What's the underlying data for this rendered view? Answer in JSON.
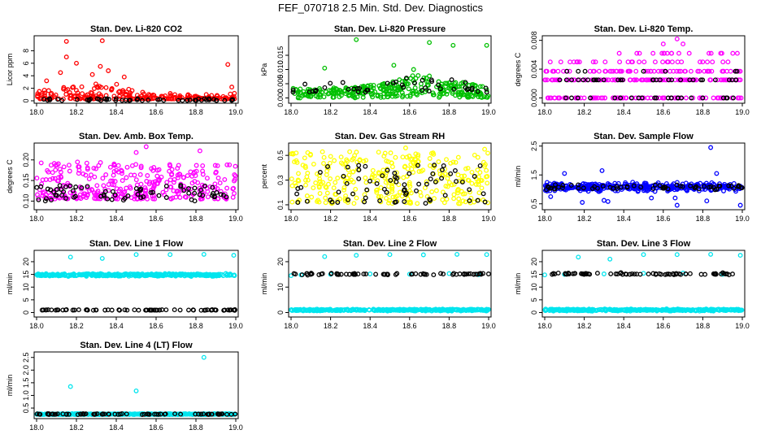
{
  "page_title": "FEF_070718  2.5 Min. Std. Dev. Diagnostics",
  "chart_data": [
    {
      "type": "scatter",
      "title": "Stan. Dev. Li-820 CO2",
      "ylabel": "Licor ppm",
      "xlim": [
        18.0,
        19.0
      ],
      "xticks": [
        "18.0",
        "18.2",
        "18.4",
        "18.6",
        "18.8",
        "19.0"
      ],
      "ylim": [
        0,
        10
      ],
      "yticks": [
        {
          "value": 0,
          "label": "0"
        },
        {
          "value": 2,
          "label": "2"
        },
        {
          "value": 4,
          "label": "4"
        },
        {
          "value": 6,
          "label": "6"
        },
        {
          "value": 8,
          "label": "8"
        }
      ],
      "series": [
        {
          "color": "#ff0000",
          "pattern": {
            "base": 0.3,
            "spread": 2.4,
            "skew": 2.5,
            "count": 240,
            "env": [
              [
                18.0,
                0.5
              ],
              [
                18.1,
                0.8
              ],
              [
                18.3,
                1.0
              ],
              [
                18.45,
                1.0
              ],
              [
                18.55,
                0.4
              ],
              [
                18.9,
                0.3
              ],
              [
                19.0,
                0.4
              ]
            ]
          },
          "points": [
            [
              18.15,
              9.5
            ],
            [
              18.15,
              7.0
            ],
            [
              18.33,
              9.6
            ],
            [
              18.96,
              5.8
            ],
            [
              18.2,
              6.0
            ],
            [
              18.32,
              5.5
            ],
            [
              18.36,
              4.8
            ],
            [
              18.28,
              4.2
            ],
            [
              18.44,
              3.8
            ],
            [
              18.98,
              2.2
            ],
            [
              18.05,
              3.2
            ],
            [
              18.12,
              4.5
            ]
          ]
        },
        {
          "color": "#000000",
          "pattern": {
            "base": 0.05,
            "spread": 0.3,
            "skew": 2.0,
            "count": 50
          },
          "points": []
        }
      ]
    },
    {
      "type": "scatter",
      "title": "Stan. Dev. Li-820 Pressure",
      "ylabel": "kPa",
      "xlim": [
        18.0,
        19.0
      ],
      "xticks": [
        "18.0",
        "18.2",
        "18.4",
        "18.6",
        "18.8",
        "19.0"
      ],
      "ylim": [
        -0.001,
        0.021
      ],
      "yticks": [
        {
          "value": 0.0,
          "label": "0.000"
        },
        {
          "value": 0.005,
          "label": "0.005"
        },
        {
          "value": 0.01,
          "label": "0.010"
        },
        {
          "value": 0.015,
          "label": "0.015"
        }
      ],
      "series": [
        {
          "color": "#00c000",
          "pattern": {
            "base": 0.0,
            "spread": 0.0045,
            "skew": 1.0,
            "count": 320,
            "env": [
              [
                18.0,
                0.8
              ],
              [
                18.3,
                0.8
              ],
              [
                18.5,
                1.2
              ],
              [
                18.65,
                1.9
              ],
              [
                18.8,
                1.4
              ],
              [
                19.0,
                0.9
              ]
            ]
          },
          "points": [
            [
              18.33,
              0.0205
            ],
            [
              18.17,
              0.0105
            ],
            [
              18.7,
              0.0195
            ],
            [
              18.82,
              0.0185
            ],
            [
              18.99,
              0.0185
            ],
            [
              18.52,
              0.0115
            ],
            [
              18.62,
              0.01
            ]
          ]
        },
        {
          "color": "#000000",
          "pattern": {
            "base": 0.002,
            "spread": 0.003,
            "skew": 1.2,
            "count": 45,
            "env": [
              [
                18.0,
                1.0
              ],
              [
                18.5,
                1.5
              ],
              [
                18.65,
                2.0
              ],
              [
                19.0,
                1.0
              ]
            ]
          },
          "points": []
        }
      ]
    },
    {
      "type": "scatter",
      "title": "Stan. Dev. Li-820 Temp.",
      "ylabel": "degrees C",
      "xlim": [
        18.0,
        19.0
      ],
      "xticks": [
        "18.0",
        "18.2",
        "18.4",
        "18.6",
        "18.8",
        "19.0"
      ],
      "ylim": [
        -0.0004,
        0.0083
      ],
      "yticks": [
        {
          "value": 0.0,
          "label": "0.000"
        },
        {
          "value": 0.004,
          "label": "0.004"
        },
        {
          "value": 0.008,
          "label": "0.008"
        }
      ],
      "series": [
        {
          "color": "#ff00ff",
          "pattern": {
            "levels": [
              0.0,
              0.0025,
              0.0037,
              0.005,
              0.0062
            ],
            "weights": [
              0.3,
              0.42,
              0.16,
              0.08,
              0.04
            ],
            "count": 320
          },
          "points": [
            [
              18.67,
              0.0082
            ],
            [
              18.7,
              0.0075
            ],
            [
              18.62,
              0.0062
            ],
            [
              18.6,
              0.0075
            ]
          ]
        },
        {
          "color": "#000000",
          "pattern": {
            "levels": [
              0.0,
              0.0025,
              0.0037
            ],
            "weights": [
              0.5,
              0.42,
              0.08
            ],
            "count": 60
          },
          "points": []
        }
      ]
    },
    {
      "type": "scatter",
      "title": "Stan. Dev. Amb. Box Temp.",
      "ylabel": "degrees C",
      "xlim": [
        18.0,
        19.0
      ],
      "xticks": [
        "18.0",
        "18.2",
        "18.4",
        "18.6",
        "18.8",
        "19.0"
      ],
      "ylim": [
        0.085,
        0.235
      ],
      "yticks": [
        {
          "value": 0.1,
          "label": "0.10"
        },
        {
          "value": 0.15,
          "label": "0.15"
        },
        {
          "value": 0.2,
          "label": "0.20"
        }
      ],
      "series": [
        {
          "color": "#ff00ff",
          "pattern": {
            "base": 0.105,
            "spread": 0.09,
            "skew": 1.6,
            "count": 330
          },
          "points": [
            [
              18.55,
              0.232
            ],
            [
              18.82,
              0.222
            ],
            [
              18.5,
              0.218
            ]
          ]
        },
        {
          "color": "#000000",
          "pattern": {
            "base": 0.1,
            "spread": 0.04,
            "skew": 1.3,
            "count": 70
          },
          "points": []
        }
      ]
    },
    {
      "type": "scatter",
      "title": "Stan. Dev. Gas Stream RH",
      "ylabel": "percent",
      "xlim": [
        18.0,
        19.0
      ],
      "xticks": [
        "18.0",
        "18.2",
        "18.4",
        "18.6",
        "18.8",
        "19.0"
      ],
      "ylim": [
        0.08,
        0.58
      ],
      "yticks": [
        {
          "value": 0.1,
          "label": "0.1"
        },
        {
          "value": 0.3,
          "label": "0.3"
        },
        {
          "value": 0.5,
          "label": "0.5"
        }
      ],
      "series": [
        {
          "color": "#ffff00",
          "pattern": {
            "base": 0.11,
            "spread": 0.42,
            "skew": 1.4,
            "count": 320
          },
          "points": [
            [
              18.58,
              0.56
            ],
            [
              18.98,
              0.55
            ]
          ]
        },
        {
          "color": "#000000",
          "pattern": {
            "base": 0.11,
            "spread": 0.33,
            "skew": 1.3,
            "count": 70
          },
          "points": []
        }
      ]
    },
    {
      "type": "scatter",
      "title": "Stan. Dev. Sample Flow",
      "ylabel": "ml/min",
      "xlim": [
        18.0,
        19.0
      ],
      "xticks": [
        "18.0",
        "18.2",
        "18.4",
        "18.6",
        "18.8",
        "19.0"
      ],
      "ylim": [
        0.38,
        2.52
      ],
      "yticks": [
        {
          "value": 0.5,
          "label": "0.5"
        },
        {
          "value": 1.5,
          "label": "1.5"
        },
        {
          "value": 2.5,
          "label": "2.5"
        }
      ],
      "series": [
        {
          "color": "#0000ff",
          "pattern": {
            "center": 1.08,
            "spread": 0.14,
            "count": 360
          },
          "points": [
            [
              18.84,
              2.45
            ],
            [
              18.03,
              0.75
            ],
            [
              18.1,
              1.55
            ],
            [
              18.29,
              1.65
            ],
            [
              18.3,
              0.62
            ],
            [
              18.32,
              0.58
            ],
            [
              18.54,
              0.7
            ],
            [
              18.66,
              0.7
            ],
            [
              18.67,
              0.45
            ],
            [
              18.82,
              0.6
            ],
            [
              18.99,
              0.45
            ],
            [
              18.87,
              1.55
            ],
            [
              18.19,
              0.55
            ]
          ]
        },
        {
          "color": "#000000",
          "pattern": {
            "center": 1.08,
            "spread": 0.08,
            "count": 60
          },
          "points": []
        }
      ]
    },
    {
      "type": "scatter",
      "title": "Stan. Dev. Line 1 Flow",
      "ylabel": "ml/min",
      "xlim": [
        18.0,
        19.0
      ],
      "xticks": [
        "18.0",
        "18.2",
        "18.4",
        "18.6",
        "18.8",
        "19.0"
      ],
      "ylim": [
        -0.8,
        23.5
      ],
      "yticks": [
        {
          "value": 0,
          "label": "0"
        },
        {
          "value": 5,
          "label": "5"
        },
        {
          "value": 10,
          "label": "10"
        },
        {
          "value": 15,
          "label": "15"
        },
        {
          "value": 20,
          "label": "20"
        }
      ],
      "series": [
        {
          "color": "#00e5ee",
          "pattern": {
            "center": 14.8,
            "spread": 0.45,
            "count": 380
          },
          "points": [
            [
              18.17,
              21.8
            ],
            [
              18.33,
              21.3
            ],
            [
              18.5,
              22.8
            ],
            [
              18.67,
              22.8
            ],
            [
              18.84,
              22.9
            ],
            [
              18.99,
              22.5
            ]
          ]
        },
        {
          "color": "#000000",
          "pattern": {
            "center": 1.0,
            "spread": 0.1,
            "count": 70
          },
          "points": []
        }
      ]
    },
    {
      "type": "scatter",
      "title": "Stan. Dev. Line 2 Flow",
      "ylabel": "ml/min",
      "xlim": [
        18.0,
        19.0
      ],
      "xticks": [
        "18.0",
        "18.2",
        "18.4",
        "18.6",
        "18.8",
        "19.0"
      ],
      "ylim": [
        -0.8,
        23.5
      ],
      "yticks": [
        {
          "value": 0,
          "label": "0"
        },
        {
          "value": 10,
          "label": "10"
        },
        {
          "value": 20,
          "label": "20"
        }
      ],
      "series": [
        {
          "color": "#00e5ee",
          "pattern": {
            "center": 1.0,
            "spread": 0.35,
            "count": 380
          },
          "points": [
            [
              18.17,
              22.0
            ],
            [
              18.33,
              22.5
            ],
            [
              18.5,
              22.8
            ],
            [
              18.67,
              22.7
            ],
            [
              18.84,
              22.9
            ],
            [
              18.99,
              22.8
            ],
            [
              18.0,
              14.5
            ],
            [
              18.05,
              14.8
            ],
            [
              18.2,
              15.0
            ],
            [
              18.4,
              15.2
            ],
            [
              18.6,
              15.1
            ],
            [
              18.8,
              15.3
            ],
            [
              18.95,
              14.9
            ]
          ]
        },
        {
          "color": "#000000",
          "pattern": {
            "center": 15.1,
            "spread": 0.35,
            "count": 70
          },
          "points": []
        }
      ]
    },
    {
      "type": "scatter",
      "title": "Stan. Dev. Line 3 Flow",
      "ylabel": "ml/min",
      "xlim": [
        18.0,
        19.0
      ],
      "xticks": [
        "18.0",
        "18.2",
        "18.4",
        "18.6",
        "18.8",
        "19.0"
      ],
      "ylim": [
        -0.8,
        23.5
      ],
      "yticks": [
        {
          "value": 0,
          "label": "0"
        },
        {
          "value": 5,
          "label": "5"
        },
        {
          "value": 10,
          "label": "10"
        },
        {
          "value": 15,
          "label": "15"
        },
        {
          "value": 20,
          "label": "20"
        }
      ],
      "series": [
        {
          "color": "#00e5ee",
          "pattern": {
            "center": 1.0,
            "spread": 0.35,
            "count": 380
          },
          "points": [
            [
              18.17,
              21.8
            ],
            [
              18.33,
              21.0
            ],
            [
              18.5,
              22.8
            ],
            [
              18.67,
              22.8
            ],
            [
              18.84,
              22.9
            ],
            [
              18.99,
              22.5
            ],
            [
              18.0,
              14.8
            ],
            [
              18.1,
              15.0
            ],
            [
              18.3,
              15.2
            ],
            [
              18.5,
              15.4
            ],
            [
              18.7,
              15.5
            ],
            [
              18.9,
              15.0
            ]
          ]
        },
        {
          "color": "#000000",
          "pattern": {
            "center": 15.2,
            "spread": 0.35,
            "count": 70
          },
          "points": []
        }
      ]
    },
    {
      "type": "scatter",
      "title": "Stan. Dev. Line 4 (LT) Flow",
      "ylabel": "ml/min",
      "xlim": [
        18.0,
        19.0
      ],
      "xticks": [
        "18.0",
        "18.2",
        "18.4",
        "18.6",
        "18.8",
        "19.0"
      ],
      "ylim": [
        0.18,
        2.62
      ],
      "yticks": [
        {
          "value": 0.5,
          "label": "0.5"
        },
        {
          "value": 1.0,
          "label": "1.0"
        },
        {
          "value": 1.5,
          "label": "1.5"
        },
        {
          "value": 2.0,
          "label": "2.0"
        },
        {
          "value": 2.5,
          "label": "2.5"
        }
      ],
      "series": [
        {
          "color": "#00e5ee",
          "pattern": {
            "center": 0.26,
            "spread": 0.02,
            "count": 380
          },
          "points": [
            [
              18.17,
              1.35
            ],
            [
              18.5,
              1.18
            ],
            [
              18.84,
              2.5
            ]
          ]
        },
        {
          "color": "#000000",
          "pattern": {
            "center": 0.26,
            "spread": 0.015,
            "count": 70
          },
          "points": []
        }
      ]
    }
  ]
}
